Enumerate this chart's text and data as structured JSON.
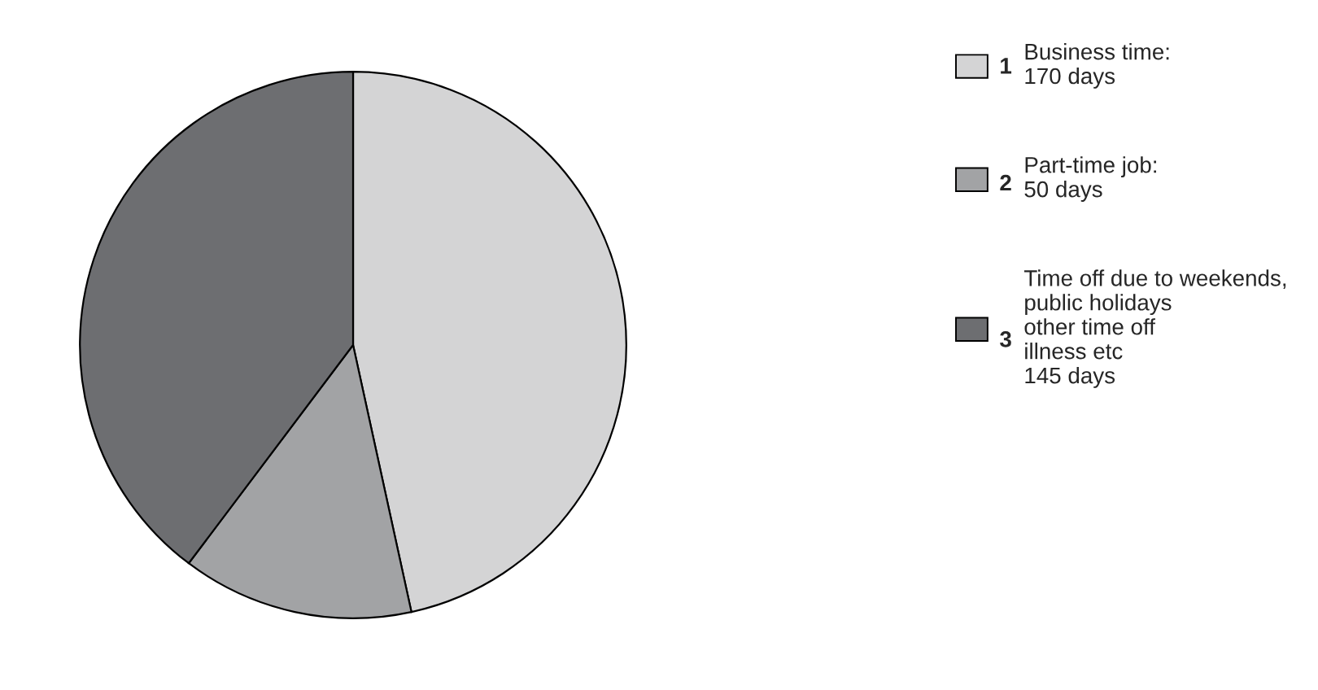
{
  "chart_data": {
    "type": "pie",
    "categories": [
      "Business time:\n170 days",
      "Part-time job:\n50 days",
      "Time off due to weekends,\npublic holidays\nother time off\nillness etc\n145 days"
    ],
    "values": [
      170,
      50,
      145
    ],
    "colors": [
      "#d4d4d5",
      "#a2a3a5",
      "#6d6e71"
    ],
    "annotations": [
      "1",
      "2",
      "3"
    ],
    "legend": "right"
  }
}
